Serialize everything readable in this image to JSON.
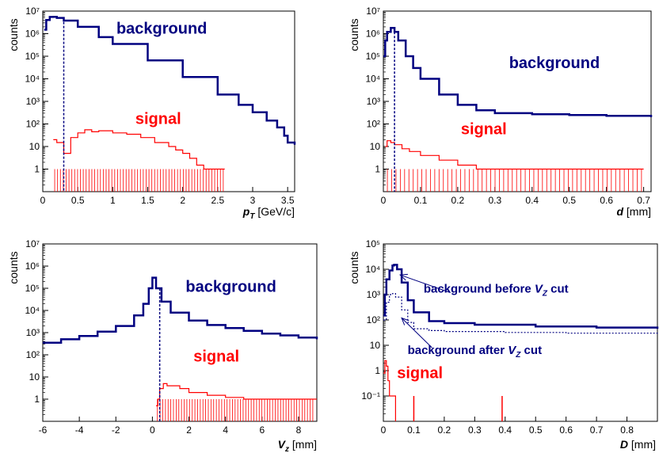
{
  "colors": {
    "background": "#000080",
    "signal": "#ff0000",
    "axis": "#000000"
  },
  "chart_data": [
    {
      "type": "line",
      "title": "",
      "xlabel": {
        "var": "p",
        "sub": "T",
        "unit": "[GeV/c]"
      },
      "ylabel": "counts",
      "xlim": [
        0,
        3.6
      ],
      "ylim": [
        0.1,
        10000000
      ],
      "yscale": "log",
      "x_ticks": [
        "0",
        "0.5",
        "1",
        "1.5",
        "2",
        "2.5",
        "3",
        "3.5"
      ],
      "y_ticks": [
        "1",
        "10",
        "10²",
        "10³",
        "10⁴",
        "10⁵",
        "10⁶",
        "10⁷"
      ],
      "series": [
        {
          "name": "background",
          "points": [
            [
              0.02,
              1500000
            ],
            [
              0.05,
              4000000
            ],
            [
              0.1,
              5500000
            ],
            [
              0.15,
              5600000
            ],
            [
              0.2,
              5000000
            ],
            [
              0.3,
              3800000
            ],
            [
              0.5,
              2000000
            ],
            [
              0.8,
              700000
            ],
            [
              1.0,
              350000
            ],
            [
              1.5,
              65000
            ],
            [
              2.0,
              12000
            ],
            [
              2.5,
              2000
            ],
            [
              2.8,
              700
            ],
            [
              3.0,
              330
            ],
            [
              3.2,
              140
            ],
            [
              3.35,
              70
            ],
            [
              3.45,
              30
            ],
            [
              3.5,
              15
            ],
            [
              3.6,
              12
            ]
          ]
        },
        {
          "name": "signal",
          "points": [
            [
              0.15,
              20
            ],
            [
              0.2,
              15
            ],
            [
              0.3,
              5
            ],
            [
              0.4,
              25
            ],
            [
              0.5,
              40
            ],
            [
              0.6,
              55
            ],
            [
              0.7,
              45
            ],
            [
              0.8,
              50
            ],
            [
              1.0,
              40
            ],
            [
              1.2,
              35
            ],
            [
              1.4,
              25
            ],
            [
              1.6,
              15
            ],
            [
              1.8,
              10
            ],
            [
              1.9,
              7
            ],
            [
              2.0,
              5
            ],
            [
              2.1,
              3
            ],
            [
              2.2,
              1.5
            ],
            [
              2.3,
              1
            ],
            [
              2.4,
              1
            ],
            [
              2.5,
              1
            ],
            [
              2.6,
              1
            ]
          ]
        }
      ],
      "cut": {
        "x": 0.3,
        "y": 5000000
      },
      "annotations": [
        {
          "text": "background",
          "x": 1.7,
          "y": 1000000,
          "color": "#000080"
        },
        {
          "text": "signal",
          "x": 1.65,
          "y": 100,
          "color": "#ff0000"
        }
      ]
    },
    {
      "type": "line",
      "title": "",
      "xlabel": {
        "var": "d",
        "sub": "",
        "unit": "[mm]"
      },
      "ylabel": "counts",
      "xlim": [
        0,
        0.72
      ],
      "ylim": [
        0.1,
        10000000
      ],
      "yscale": "log",
      "x_ticks": [
        "0",
        "0.1",
        "0.2",
        "0.3",
        "0.4",
        "0.5",
        "0.6",
        "0.7"
      ],
      "y_ticks": [
        "1",
        "10",
        "10²",
        "10³",
        "10⁴",
        "10⁵",
        "10⁶",
        "10⁷"
      ],
      "series": [
        {
          "name": "background",
          "points": [
            [
              0.0,
              100000
            ],
            [
              0.005,
              500000
            ],
            [
              0.01,
              1200000
            ],
            [
              0.02,
              1800000
            ],
            [
              0.03,
              1200000
            ],
            [
              0.04,
              500000
            ],
            [
              0.06,
              100000
            ],
            [
              0.08,
              30000
            ],
            [
              0.1,
              10000
            ],
            [
              0.15,
              2000
            ],
            [
              0.2,
              700
            ],
            [
              0.25,
              400
            ],
            [
              0.3,
              300
            ],
            [
              0.4,
              270
            ],
            [
              0.5,
              250
            ],
            [
              0.6,
              230
            ],
            [
              0.72,
              200
            ]
          ]
        },
        {
          "name": "signal",
          "points": [
            [
              0.005,
              10
            ],
            [
              0.01,
              18
            ],
            [
              0.02,
              15
            ],
            [
              0.03,
              12
            ],
            [
              0.05,
              8
            ],
            [
              0.07,
              6
            ],
            [
              0.1,
              4
            ],
            [
              0.15,
              2.5
            ],
            [
              0.2,
              1.5
            ],
            [
              0.25,
              1
            ],
            [
              0.3,
              1
            ],
            [
              0.35,
              1
            ],
            [
              0.4,
              1
            ],
            [
              0.45,
              1
            ],
            [
              0.5,
              1
            ],
            [
              0.55,
              1
            ],
            [
              0.6,
              1
            ],
            [
              0.65,
              1
            ],
            [
              0.7,
              1
            ]
          ]
        }
      ],
      "cut": {
        "x": 0.03,
        "y": 1200000
      },
      "annotations": [
        {
          "text": "background",
          "x": 0.46,
          "y": 30000,
          "color": "#000080"
        },
        {
          "text": "signal",
          "x": 0.27,
          "y": 35,
          "color": "#ff0000"
        }
      ]
    },
    {
      "type": "line",
      "title": "",
      "xlabel": {
        "var": "V",
        "sub": "z",
        "unit": "[mm]"
      },
      "ylabel": "counts",
      "xlim": [
        -6,
        9
      ],
      "ylim": [
        0.1,
        10000000
      ],
      "yscale": "log",
      "x_ticks": [
        "-6",
        "-4",
        "-2",
        "0",
        "2",
        "4",
        "6",
        "8"
      ],
      "y_ticks": [
        "1",
        "10",
        "10²",
        "10³",
        "10⁴",
        "10⁵",
        "10⁶",
        "10⁷"
      ],
      "series": [
        {
          "name": "background",
          "points": [
            [
              -6,
              350
            ],
            [
              -5,
              500
            ],
            [
              -4,
              700
            ],
            [
              -3,
              1100
            ],
            [
              -2,
              2000
            ],
            [
              -1,
              6000
            ],
            [
              -0.5,
              20000
            ],
            [
              -0.2,
              100000
            ],
            [
              0,
              300000
            ],
            [
              0.2,
              100000
            ],
            [
              0.5,
              25000
            ],
            [
              1,
              8000
            ],
            [
              2,
              3500
            ],
            [
              3,
              2200
            ],
            [
              4,
              1600
            ],
            [
              5,
              1200
            ],
            [
              6,
              900
            ],
            [
              7,
              750
            ],
            [
              8,
              600
            ],
            [
              9,
              500
            ]
          ]
        },
        {
          "name": "signal",
          "points": [
            [
              0.2,
              0.5
            ],
            [
              0.3,
              1
            ],
            [
              0.4,
              3
            ],
            [
              0.6,
              5
            ],
            [
              0.8,
              4
            ],
            [
              1,
              4
            ],
            [
              1.5,
              3
            ],
            [
              2,
              2
            ],
            [
              3,
              1.5
            ],
            [
              4,
              1.2
            ],
            [
              5,
              1
            ],
            [
              6,
              1
            ],
            [
              7,
              1
            ],
            [
              8,
              1
            ],
            [
              9,
              1
            ]
          ]
        }
      ],
      "cut": {
        "x": 0.4,
        "y": 100000
      },
      "annotations": [
        {
          "text": "background",
          "x": 4.3,
          "y": 70000,
          "color": "#000080"
        },
        {
          "text": "signal",
          "x": 3.5,
          "y": 50,
          "color": "#ff0000"
        }
      ]
    },
    {
      "type": "line",
      "title": "",
      "xlabel": {
        "var": "D",
        "sub": "",
        "unit": "[mm]"
      },
      "ylabel": "counts",
      "xlim": [
        0,
        0.9
      ],
      "ylim": [
        0.1,
        1000000
      ],
      "yscale": "log",
      "x_ticks": [
        "0",
        "0.1",
        "0.2",
        "0.3",
        "0.4",
        "0.5",
        "0.6",
        "0.7",
        "0.8"
      ],
      "y_ticks": [
        "10⁻¹",
        "1",
        "10",
        "10²",
        "10³",
        "10⁴",
        "10⁵"
      ],
      "series": [
        {
          "name": "background before V_Z cut",
          "points": [
            [
              0.0,
              1500
            ],
            [
              0.005,
              10000
            ],
            [
              0.01,
              40000
            ],
            [
              0.02,
              90000
            ],
            [
              0.03,
              140000
            ],
            [
              0.035,
              150000
            ],
            [
              0.045,
              100000
            ],
            [
              0.06,
              30000
            ],
            [
              0.08,
              6000
            ],
            [
              0.1,
              2000
            ],
            [
              0.15,
              900
            ],
            [
              0.2,
              750
            ],
            [
              0.3,
              650
            ],
            [
              0.5,
              550
            ],
            [
              0.7,
              500
            ],
            [
              0.9,
              450
            ]
          ]
        },
        {
          "name": "background after V_Z cut",
          "points": [
            [
              0.0,
              1000
            ],
            [
              0.01,
              5000
            ],
            [
              0.02,
              10000
            ],
            [
              0.03,
              11000
            ],
            [
              0.04,
              8000
            ],
            [
              0.06,
              2500
            ],
            [
              0.08,
              800
            ],
            [
              0.1,
              450
            ],
            [
              0.15,
              380
            ],
            [
              0.2,
              350
            ],
            [
              0.4,
              320
            ],
            [
              0.6,
              300
            ],
            [
              0.9,
              280
            ]
          ]
        },
        {
          "name": "signal",
          "points": [
            [
              0.0,
              8
            ],
            [
              0.005,
              25
            ],
            [
              0.01,
              15
            ],
            [
              0.015,
              4
            ],
            [
              0.02,
              1
            ],
            [
              0.03,
              1
            ],
            [
              0.04,
              0.1
            ]
          ]
        }
      ],
      "spikes": [
        {
          "series": "signal",
          "x": 0.1,
          "y": 1
        },
        {
          "series": "signal",
          "x": 0.39,
          "y": 1
        }
      ],
      "annotations": [
        {
          "text": "background before ",
          "var": "V",
          "sub": "Z",
          "tail": " cut",
          "x": 0.37,
          "y": 12000,
          "color": "#000080"
        },
        {
          "text": "background after ",
          "var": "V",
          "sub": "Z",
          "tail": " cut",
          "x": 0.3,
          "y": 45,
          "color": "#000080"
        },
        {
          "text": "signal",
          "x": 0.12,
          "y": 5,
          "color": "#ff0000"
        }
      ]
    }
  ]
}
